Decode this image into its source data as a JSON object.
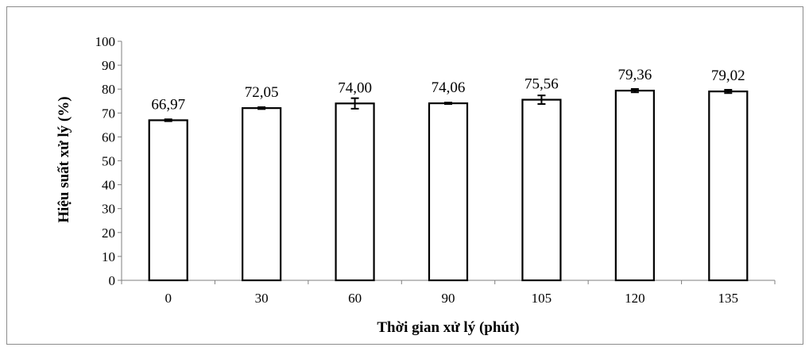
{
  "chart_data": {
    "type": "bar",
    "categories": [
      "0",
      "30",
      "60",
      "90",
      "105",
      "120",
      "135"
    ],
    "values": [
      66.97,
      72.05,
      74.0,
      74.06,
      75.56,
      79.36,
      79.02
    ],
    "data_labels": [
      "66,97",
      "72,05",
      "74,00",
      "74,06",
      "75,56",
      "79,36",
      "79,02"
    ],
    "error": [
      0.4,
      0.4,
      2.2,
      0.3,
      1.8,
      0.7,
      0.7
    ],
    "xlabel": "Thời gian xử lý (phút)",
    "ylabel": "Hiệu suất xử lý (%)",
    "ylim": [
      0,
      100
    ],
    "yticks": [
      "0",
      "10",
      "20",
      "30",
      "40",
      "50",
      "60",
      "70",
      "80",
      "90",
      "100"
    ],
    "grid": false,
    "legend": "none",
    "colors": {
      "bar_fill": "#ffffff",
      "bar_stroke": "#000000",
      "axis": "#7f7f7f",
      "frame": "#8c8c8c"
    }
  }
}
